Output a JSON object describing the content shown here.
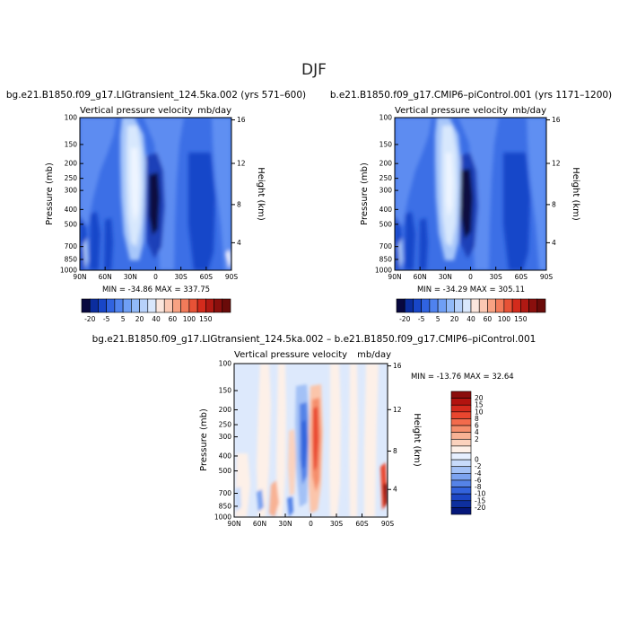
{
  "figure": {
    "title": "DJF"
  },
  "panels": [
    {
      "subtitle": "bg.e21.B1850.f09_g17.LIGtransient_124.5ka.002 (yrs 571–600)",
      "variable": "Vertical pressure velocity",
      "units": "mb/day",
      "stats_label": "MIN = -34.86   MAX = 337.75"
    },
    {
      "subtitle": "b.e21.B1850.f09_g17.CMIP6–piControl.001 (yrs 1171–1200)",
      "variable": "Vertical pressure velocity",
      "units": "mb/day",
      "stats_label": "MIN = -34.29   MAX = 305.11"
    },
    {
      "subtitle": "bg.e21.B1850.f09_g17.LIGtransient_124.5ka.002 – b.e21.B1850.f09_g17.CMIP6–piControl.001",
      "variable": "Vertical pressure velocity",
      "units": "mb/day",
      "stats_label": "MIN = -13.76   MAX =   32.64"
    }
  ],
  "axes": {
    "ylabel": "Pressure (mb)",
    "ylabel_right": "Height (km)",
    "x_ticks": [
      "90N",
      "60N",
      "30N",
      "0",
      "30S",
      "60S",
      "90S"
    ],
    "y_ticks": [
      "100",
      "150",
      "200",
      "250",
      "300",
      "400",
      "500",
      "700",
      "850",
      "1000"
    ],
    "height_ticks": [
      "16",
      "12",
      "8",
      "4"
    ]
  },
  "colorbar_abs": {
    "orientation": "horizontal",
    "labels": [
      "-20",
      "-5",
      "5",
      "20",
      "40",
      "60",
      "100",
      "150"
    ],
    "colors": [
      "#08083f",
      "#0b2d9e",
      "#1846c8",
      "#3063e0",
      "#4f82ee",
      "#6f9ff5",
      "#91b9f8",
      "#b7d1fa",
      "#d9e7fc",
      "#fbe6dd",
      "#fbc8b3",
      "#f8a283",
      "#f27b5a",
      "#e75236",
      "#d32b1c",
      "#b01913",
      "#8a0f0d",
      "#6a0b09"
    ]
  },
  "colorbar_diff": {
    "orientation": "vertical",
    "labels": [
      "20",
      "15",
      "10",
      "8",
      "6",
      "4",
      "2",
      "0",
      "-2",
      "-4",
      "-6",
      "-8",
      "-10",
      "-15",
      "-20"
    ],
    "colors": [
      "#8b0d0c",
      "#b2130f",
      "#d42a1d",
      "#e9462f",
      "#f26b4c",
      "#f58e6c",
      "#f8b294",
      "#fbd2bd",
      "#fdf0e8",
      "#e6efff",
      "#c8dbfb",
      "#a3c1f6",
      "#7ca3f0",
      "#5583e7",
      "#3363dc",
      "#1c46c4",
      "#0e2f9e",
      "#05177a"
    ]
  },
  "chart_data": [
    {
      "type": "heatmap",
      "title": "bg.e21.B1850.f09_g17.LIGtransient_124.5ka.002 (yrs 571–600)",
      "variable": "Vertical pressure velocity",
      "units": "mb/day",
      "xlabel": "",
      "ylabel": "Pressure (mb)",
      "ylabel_right": "Height (km)",
      "x_ticks": [
        "90N",
        "60N",
        "30N",
        "0",
        "30S",
        "60S",
        "90S"
      ],
      "y_ticks": [
        100,
        150,
        200,
        250,
        300,
        400,
        500,
        700,
        850,
        1000
      ],
      "y_scale": "log, inverted",
      "min": -34.86,
      "max": 337.75,
      "levels": [
        -20,
        -5,
        5,
        20,
        40,
        60,
        100,
        150
      ]
    },
    {
      "type": "heatmap",
      "title": "b.e21.B1850.f09_g17.CMIP6–piControl.001 (yrs 1171–1200)",
      "variable": "Vertical pressure velocity",
      "units": "mb/day",
      "xlabel": "",
      "ylabel": "Pressure (mb)",
      "ylabel_right": "Height (km)",
      "x_ticks": [
        "90N",
        "60N",
        "30N",
        "0",
        "30S",
        "60S",
        "90S"
      ],
      "y_ticks": [
        100,
        150,
        200,
        250,
        300,
        400,
        500,
        700,
        850,
        1000
      ],
      "y_scale": "log, inverted",
      "min": -34.29,
      "max": 305.11,
      "levels": [
        -20,
        -5,
        5,
        20,
        40,
        60,
        100,
        150
      ]
    },
    {
      "type": "heatmap",
      "title": "bg.e21.B1850.f09_g17.LIGtransient_124.5ka.002 – b.e21.B1850.f09_g17.CMIP6–piControl.001",
      "variable": "Vertical pressure velocity",
      "units": "mb/day",
      "xlabel": "",
      "ylabel": "Pressure (mb)",
      "ylabel_right": "Height (km)",
      "x_ticks": [
        "90N",
        "60N",
        "30N",
        "0",
        "30S",
        "60S",
        "90S"
      ],
      "y_ticks": [
        100,
        150,
        200,
        250,
        300,
        400,
        500,
        700,
        850,
        1000
      ],
      "y_scale": "log, inverted",
      "min": -13.76,
      "max": 32.64,
      "levels": [
        -20,
        -15,
        -10,
        -8,
        -6,
        -4,
        -2,
        0,
        2,
        4,
        6,
        8,
        10,
        15,
        20
      ]
    }
  ]
}
